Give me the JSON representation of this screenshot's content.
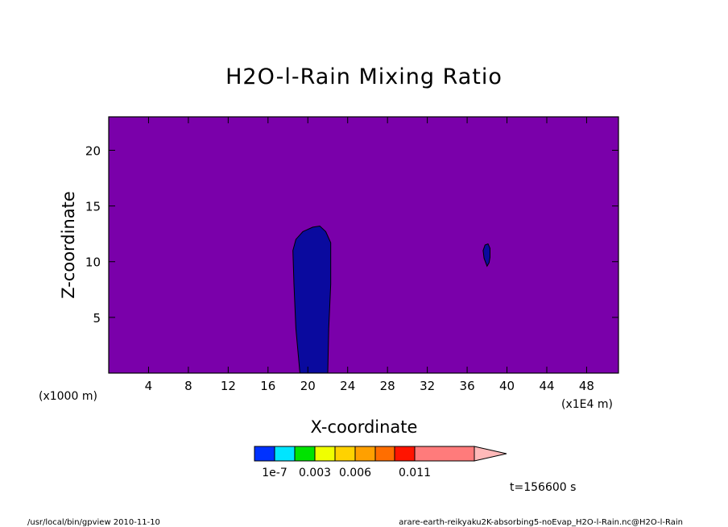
{
  "chart_data": {
    "type": "heatmap",
    "title": "H2O-l-Rain Mixing Ratio",
    "xlabel": "X-coordinate",
    "ylabel": "Z-coordinate",
    "x_units": "(x1E4 m)",
    "y_units": "(x1000 m)",
    "xlim": [
      0,
      51.2
    ],
    "ylim": [
      0,
      23
    ],
    "x_ticks": [
      4,
      8,
      12,
      16,
      20,
      24,
      28,
      32,
      36,
      40,
      44,
      48
    ],
    "y_ticks": [
      5,
      10,
      15,
      20
    ],
    "grid": false,
    "background_fill": "#7a00aa",
    "regions": [
      {
        "fill": "#0a0a9e",
        "outline": [
          [
            19.2,
            0
          ],
          [
            18.8,
            4
          ],
          [
            18.6,
            8
          ],
          [
            18.5,
            11
          ],
          [
            18.8,
            12
          ],
          [
            19.5,
            12.7
          ],
          [
            20.5,
            13.1
          ],
          [
            21.2,
            13.2
          ],
          [
            21.8,
            12.7
          ],
          [
            22.3,
            11.7
          ],
          [
            22.3,
            8
          ],
          [
            22.1,
            4
          ],
          [
            22.0,
            0
          ]
        ]
      },
      {
        "fill": "#0a0a9e",
        "outline": [
          [
            38.0,
            9.6
          ],
          [
            37.7,
            10.3
          ],
          [
            37.6,
            11.0
          ],
          [
            37.8,
            11.5
          ],
          [
            38.1,
            11.6
          ],
          [
            38.3,
            11.2
          ],
          [
            38.3,
            10.4
          ],
          [
            38.2,
            9.9
          ]
        ]
      }
    ],
    "colorbar": {
      "colors": [
        "#0032ff",
        "#00e5ff",
        "#00e300",
        "#f0ff00",
        "#ffd200",
        "#ffa000",
        "#ff6e00",
        "#ff1400",
        "#ff7b7b",
        "#ffb9b9"
      ],
      "labels": [
        {
          "text": "1e-7",
          "pos": 0
        },
        {
          "text": "0.003",
          "pos": 2
        },
        {
          "text": "0.006",
          "pos": 4
        },
        {
          "text": "0.011",
          "pos": 7
        }
      ]
    }
  },
  "time_label": "t=156600 s",
  "footer": {
    "left": "/usr/local/bin/gpview   2010-11-10",
    "right": "arare-earth-reikyaku2K-absorbing5-noEvap_H2O-l-Rain.nc@H2O-l-Rain"
  }
}
